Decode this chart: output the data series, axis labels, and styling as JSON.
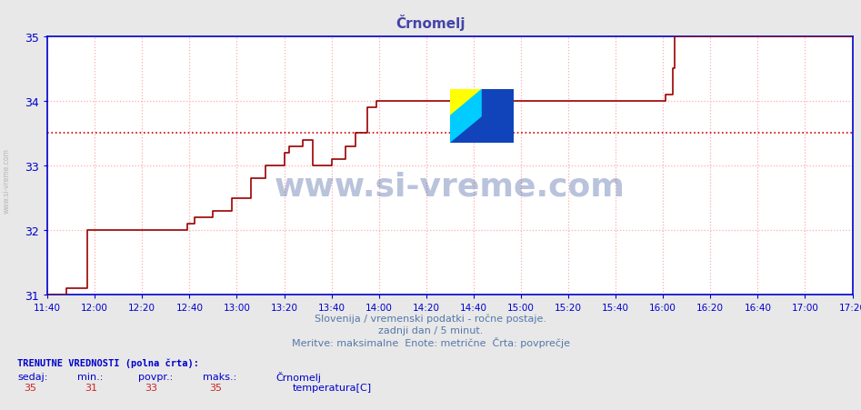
{
  "title": "Črnomelj",
  "title_color": "#4444aa",
  "bg_color": "#e8e8e8",
  "plot_bg_color": "#ffffff",
  "grid_color": "#ffaaaa",
  "axis_color": "#0000cc",
  "line_color": "#990000",
  "avg_line_value": 33.5,
  "avg_line_color": "#cc0000",
  "y_min": 31,
  "y_max": 35,
  "y_ticks": [
    31,
    32,
    33,
    34,
    35
  ],
  "x_start_minutes": 700,
  "x_end_minutes": 1040,
  "x_tick_labels": [
    "11:40",
    "12:00",
    "12:20",
    "12:40",
    "13:00",
    "13:20",
    "13:40",
    "14:00",
    "14:20",
    "14:40",
    "15:00",
    "15:20",
    "15:40",
    "16:00",
    "16:20",
    "16:40",
    "17:00",
    "17:20"
  ],
  "x_tick_minutes": [
    700,
    720,
    740,
    760,
    780,
    800,
    820,
    840,
    860,
    880,
    900,
    920,
    940,
    960,
    980,
    1000,
    1020,
    1040
  ],
  "temperature_data": [
    [
      700,
      31.0
    ],
    [
      707,
      31.0
    ],
    [
      708,
      31.1
    ],
    [
      716,
      31.1
    ],
    [
      717,
      32.0
    ],
    [
      758,
      32.0
    ],
    [
      759,
      32.1
    ],
    [
      762,
      32.2
    ],
    [
      770,
      32.3
    ],
    [
      778,
      32.5
    ],
    [
      786,
      32.8
    ],
    [
      792,
      33.0
    ],
    [
      798,
      33.0
    ],
    [
      800,
      33.2
    ],
    [
      802,
      33.3
    ],
    [
      808,
      33.4
    ],
    [
      812,
      33.0
    ],
    [
      816,
      33.0
    ],
    [
      820,
      33.1
    ],
    [
      826,
      33.3
    ],
    [
      830,
      33.5
    ],
    [
      835,
      33.9
    ],
    [
      839,
      34.0
    ],
    [
      960,
      34.0
    ],
    [
      961,
      34.1
    ],
    [
      964,
      34.5
    ],
    [
      965,
      35.0
    ],
    [
      1040,
      35.0
    ]
  ],
  "watermark_text": "www.si-vreme.com",
  "watermark_color": "#1a3a8a",
  "watermark_alpha": 0.3,
  "footer_line1": "Slovenija / vremenski podatki - ročne postaje.",
  "footer_line2": "zadnji dan / 5 minut.",
  "footer_line3": "Meritve: maksimalne  Enote: metrične  Črta: povprečje",
  "footer_color": "#5577aa",
  "label_trenutne": "TRENUTNE VREDNOSTI (polna črta):",
  "label_sedaj": "sedaj:",
  "label_min": "min.:",
  "label_povpr": "povpr.:",
  "label_maks": "maks.:",
  "val_sedaj": "35",
  "val_min": "31",
  "val_povpr": "33",
  "val_maks": "35",
  "legend_station": "Črnomelj",
  "legend_series": "temperatura[C]",
  "legend_color": "#cc0000",
  "left_label": "www.si-vreme.com",
  "left_label_color": "#aaaaaa"
}
